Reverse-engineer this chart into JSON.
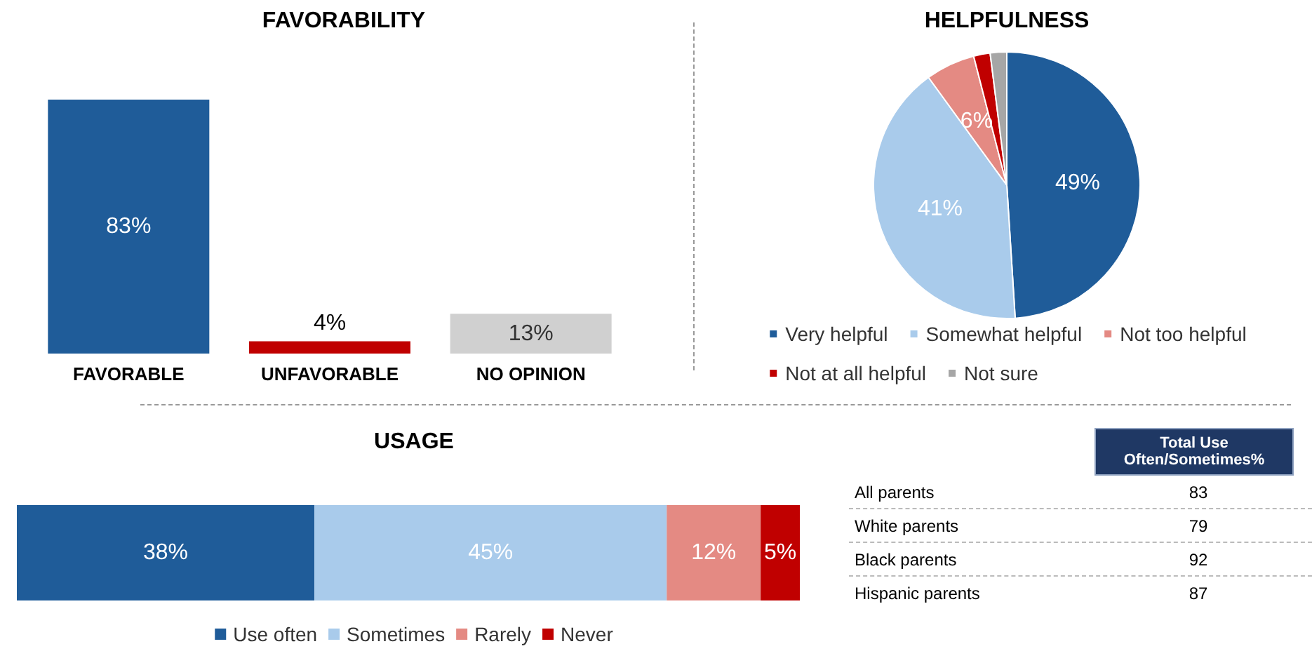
{
  "chart_data": [
    {
      "type": "bar",
      "title": "FAVORABILITY",
      "categories": [
        "FAVORABLE",
        "UNFAVORABLE",
        "NO OPINION"
      ],
      "values": [
        83,
        4,
        13
      ],
      "colors": [
        "#1f5c99",
        "#c00000",
        "#d0d0d0"
      ],
      "value_labels": [
        "83%",
        "4%",
        "13%"
      ]
    },
    {
      "type": "pie",
      "title": "HELPFULNESS",
      "categories": [
        "Very helpful",
        "Somewhat helpful",
        "Not too helpful",
        "Not at all helpful",
        "Not sure"
      ],
      "values": [
        49,
        41,
        6,
        2,
        2
      ],
      "colors": [
        "#1f5c99",
        "#a9cbeb",
        "#e48a83",
        "#c00000",
        "#a6a6a6"
      ],
      "value_labels": [
        "49%",
        "41%",
        "6%",
        null,
        null
      ],
      "legend": "bottom"
    },
    {
      "type": "bar",
      "title": "USAGE",
      "orientation": "horizontal",
      "stacked": true,
      "categories": [
        null
      ],
      "legend": "bottom",
      "series": [
        {
          "name": "Use often",
          "color": "#1f5c99",
          "values": [
            38
          ],
          "value_labels": [
            "38%"
          ]
        },
        {
          "name": "Sometimes",
          "color": "#a9cbeb",
          "values": [
            45
          ],
          "value_labels": [
            "45%"
          ]
        },
        {
          "name": "Rarely",
          "color": "#e48a83",
          "values": [
            12
          ],
          "value_labels": [
            "12%"
          ]
        },
        {
          "name": "Never",
          "color": "#c00000",
          "values": [
            5
          ],
          "value_labels": [
            "5%"
          ]
        }
      ]
    },
    {
      "type": "other",
      "title": "Total Use Often/Sometimes%",
      "color": "#1f3864",
      "data_labels": true,
      "categories": [
        "All parents",
        "White parents",
        "Black parents",
        "Hispanic parents"
      ],
      "values": [
        83,
        79,
        92,
        87
      ]
    }
  ]
}
